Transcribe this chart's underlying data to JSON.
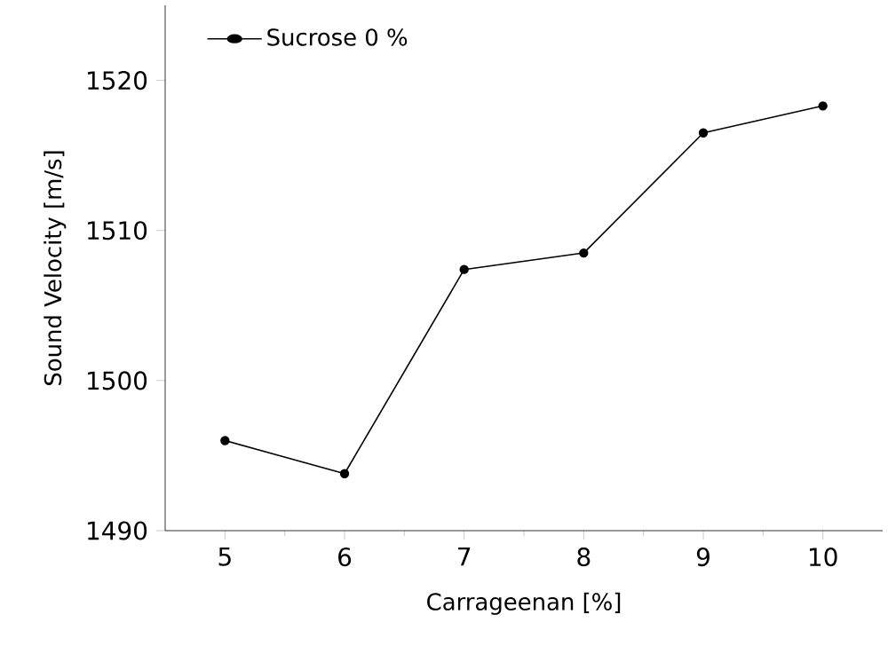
{
  "chart_data": {
    "type": "line",
    "xlabel": "Carrageenan [%]",
    "ylabel": "Sound Velocity [m/s]",
    "x": [
      5,
      6,
      7,
      8,
      9,
      10
    ],
    "series": [
      {
        "name": "Sucrose 0 %",
        "color": "#000000",
        "values": [
          1496.0,
          1493.8,
          1507.4,
          1508.5,
          1516.5,
          1518.3
        ]
      }
    ],
    "xlim": [
      4.5,
      10.5
    ],
    "ylim": [
      1490,
      1525
    ],
    "xticks": [
      5,
      6,
      7,
      8,
      9,
      10
    ],
    "yticks": [
      1490,
      1500,
      1510,
      1520
    ],
    "marker": "circle",
    "line_style": "solid",
    "legend": "top left",
    "grid": false
  }
}
